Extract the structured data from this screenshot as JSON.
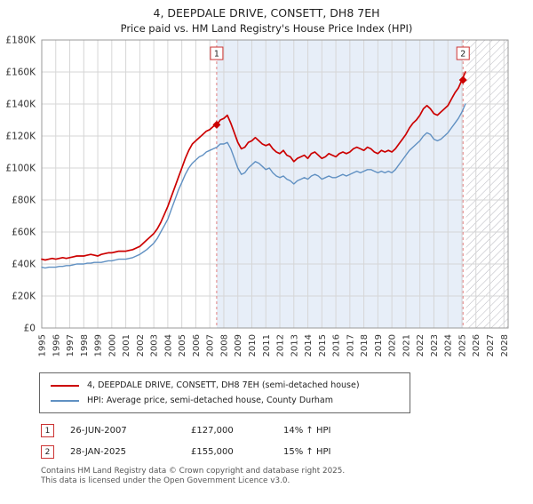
{
  "title": "4, DEEPDALE DRIVE, CONSETT, DH8 7EH",
  "subtitle": "Price paid vs. HM Land Registry's House Price Index (HPI)",
  "chart_data": {
    "type": "line",
    "title": "4, DEEPDALE DRIVE, CONSETT, DH8 7EH",
    "subtitle": "Price paid vs. HM Land Registry's House Price Index (HPI)",
    "xlim": [
      1995,
      2028.3
    ],
    "ylim": [
      0,
      180
    ],
    "x_ticks": [
      1995,
      1996,
      1997,
      1998,
      1999,
      2000,
      2001,
      2002,
      2003,
      2004,
      2005,
      2006,
      2007,
      2008,
      2009,
      2010,
      2011,
      2012,
      2013,
      2014,
      2015,
      2016,
      2017,
      2018,
      2019,
      2020,
      2021,
      2022,
      2023,
      2024,
      2025,
      2026,
      2027,
      2028
    ],
    "y_ticks": [
      0,
      20,
      40,
      60,
      80,
      100,
      120,
      140,
      160,
      180
    ],
    "y_unit": "£K",
    "grid": true,
    "x_start": 1995.0,
    "x_step": 0.25,
    "series": [
      {
        "name": "4, DEEPDALE DRIVE, CONSETT, DH8 7EH (semi-detached house)",
        "color": "#cc0000",
        "width": 1.7,
        "values": [
          43,
          42.5,
          43,
          43.5,
          43,
          43.5,
          44,
          43.5,
          44,
          44.5,
          45,
          45,
          45,
          45.5,
          46,
          45.5,
          45,
          46,
          46.5,
          47,
          47,
          47.5,
          48,
          48,
          48,
          48.5,
          49,
          50,
          51,
          53,
          55,
          57,
          59,
          62,
          66,
          71,
          76,
          82,
          88,
          94,
          100,
          106,
          111,
          115,
          117,
          119,
          121,
          123,
          124,
          126,
          127,
          130,
          131,
          133,
          128,
          122,
          116,
          112,
          113,
          116,
          117,
          119,
          117,
          115,
          114,
          115,
          112,
          110,
          109,
          111,
          108,
          107,
          104,
          106,
          107,
          108,
          106,
          109,
          110,
          108,
          106,
          107,
          109,
          108,
          107,
          109,
          110,
          109,
          110,
          112,
          113,
          112,
          111,
          113,
          112,
          110,
          109,
          111,
          110,
          111,
          110,
          112,
          115,
          118,
          121,
          125,
          128,
          130,
          133,
          137,
          139,
          137,
          134,
          133,
          135,
          137,
          139,
          143,
          147,
          150,
          155,
          160
        ]
      },
      {
        "name": "HPI: Average price, semi-detached house, County Durham",
        "color": "#6090c2",
        "width": 1.4,
        "values": [
          38,
          37.5,
          38,
          38,
          38,
          38.5,
          38.5,
          39,
          39,
          39.5,
          40,
          40,
          40,
          40.5,
          40.5,
          41,
          41,
          41,
          41.5,
          42,
          42,
          42.5,
          43,
          43,
          43,
          43.5,
          44,
          45,
          46,
          47.5,
          49,
          51,
          53,
          56,
          60,
          64,
          68,
          74,
          80,
          86,
          91,
          96,
          100,
          103,
          105,
          107,
          108,
          110,
          111,
          112,
          113,
          115,
          115,
          116,
          112,
          106,
          100,
          96,
          97,
          100,
          102,
          104,
          103,
          101,
          99,
          100,
          97,
          95,
          94,
          95,
          93,
          92,
          90,
          92,
          93,
          94,
          93,
          95,
          96,
          95,
          93,
          94,
          95,
          94,
          94,
          95,
          96,
          95,
          96,
          97,
          98,
          97,
          98,
          99,
          99,
          98,
          97,
          98,
          97,
          98,
          97,
          99,
          102,
          105,
          108,
          111,
          113,
          115,
          117,
          120,
          122,
          121,
          118,
          117,
          118,
          120,
          122,
          125,
          128,
          131,
          135,
          140
        ]
      }
    ],
    "shaded_region": {
      "from": 2007.49,
      "to": 2025.08,
      "color": "#e7eef8"
    },
    "hatch_region": {
      "from": 2025.3,
      "to": 2028.3
    },
    "markers": [
      {
        "label": "1",
        "x": 2007.49,
        "value": 127
      },
      {
        "label": "2",
        "x": 2025.08,
        "value": 155
      }
    ],
    "marker_line_color": "#e08080",
    "marker_box_border": "#cc3333"
  },
  "annotations": [
    {
      "label": "1",
      "date": "26-JUN-2007",
      "price": "£127,000",
      "hpi_change": "14% ↑ HPI"
    },
    {
      "label": "2",
      "date": "28-JAN-2025",
      "price": "£155,000",
      "hpi_change": "15% ↑ HPI"
    }
  ],
  "footer": {
    "line1": "Contains HM Land Registry data © Crown copyright and database right 2025.",
    "line2": "This data is licensed under the Open Government Licence v3.0."
  }
}
